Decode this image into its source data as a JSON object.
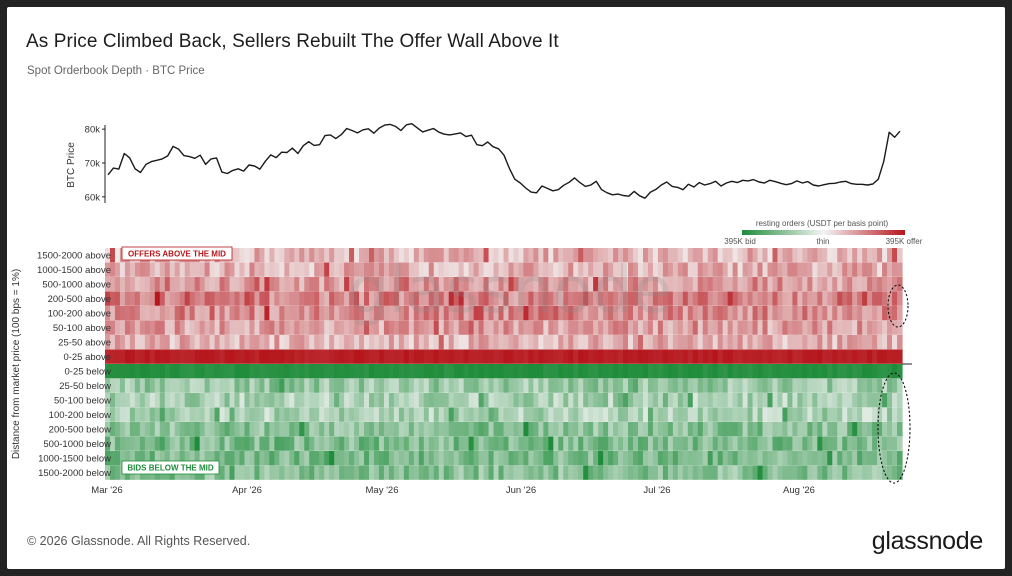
{
  "header": {
    "title": "As Price Climbed Back, Sellers Rebuilt The Offer Wall Above It",
    "subtitle": "Spot Orderbook Depth · BTC Price"
  },
  "footer": {
    "copyright": "© 2026 Glassnode. All Rights Reserved.",
    "brand": "glassnode",
    "watermark": "glassnode"
  },
  "colors": {
    "line": "#1a1a1a",
    "bid": "#1e8c3a",
    "thin": "#f4f4f4",
    "offer": "#b5161c"
  },
  "chart_data": [
    {
      "type": "line",
      "ylabel": "BTC Price",
      "y_ticks": [
        "60k",
        "70k",
        "80k"
      ],
      "ylim": [
        57,
        83
      ],
      "series": [
        {
          "values": [
            66.5,
            68.5,
            68.2,
            72.8,
            71.5,
            68.3,
            67.2,
            69.6,
            70.4,
            70.8,
            71.2,
            72.1,
            74.9,
            74.1,
            72.2,
            71.9,
            71.4,
            72.3,
            69.6,
            71.2,
            71.5,
            67.3,
            66.9,
            67.8,
            68.3,
            67.6,
            69.4,
            69.1,
            68.2,
            70.5,
            72.4,
            71.6,
            73.2,
            73.1,
            74.4,
            72.8,
            75.1,
            76.3,
            75.2,
            75.4,
            78.1,
            78.3,
            77.2,
            78.4,
            80.2,
            79.6,
            78.9,
            79.8,
            80.1,
            78.8,
            80.3,
            81.2,
            81.4,
            80.8,
            79.6,
            81.3,
            81.6,
            80.4,
            79.2,
            79.7,
            80.2,
            79.1,
            78.5,
            78.3,
            78.6,
            78.9,
            77.8,
            78.2,
            75.4,
            75.1,
            76.2,
            74.8,
            74.2,
            72.3,
            68.4,
            65.2,
            64.1,
            62.6,
            61.4,
            61.2,
            63.2,
            62.5,
            61.8,
            62.1,
            63.4,
            64.3,
            65.6,
            64.2,
            63.1,
            63.5,
            64.6,
            62.1,
            61.2,
            60.6,
            60.8,
            60.4,
            60.2,
            61.6,
            60.3,
            59.6,
            61.4,
            62.2,
            63.5,
            64.4,
            63.1,
            62.8,
            62.1,
            63.7,
            62.9,
            64.2,
            63.5,
            63.9,
            64.6,
            63.2,
            64.1,
            64.6,
            64.2,
            64.9,
            64.7,
            65.1,
            64.4,
            64.1,
            64.9,
            64.5,
            64.0,
            63.6,
            63.9,
            64.7,
            64.1,
            64.5,
            63.5,
            63.2,
            63.6,
            63.9,
            64.0,
            64.4,
            64.6,
            63.9,
            63.7,
            63.7,
            63.5,
            63.8,
            65.2,
            70.4,
            79.1,
            77.6,
            79.4
          ]
        }
      ]
    },
    {
      "type": "heatmap",
      "ylabel": "Distance from market price (100 bps = 1%)",
      "rows": [
        "1500-2000 above",
        "1000-1500 above",
        "500-1000 above",
        "200-500 above",
        "100-200 above",
        "50-100 above",
        "25-50 above",
        "0-25 above",
        "0-25 below",
        "25-50 below",
        "50-100 below",
        "100-200 below",
        "200-500 below",
        "500-1000 below",
        "1000-1500 below",
        "1500-2000 below"
      ],
      "row_mean_intensity": [
        0.28,
        0.3,
        0.4,
        0.5,
        0.47,
        0.38,
        0.3,
        0.96,
        0.96,
        0.42,
        0.34,
        0.32,
        0.5,
        0.55,
        0.56,
        0.5
      ],
      "x_ticks": [
        "Mar '26",
        "Apr '26",
        "May '26",
        "Jun '26",
        "Jul '26",
        "Aug '26"
      ],
      "annotations": [
        "OFFERS ABOVE THE MID",
        "BIDS BELOW THE MID"
      ],
      "legend": {
        "title": "resting orders (USDT per basis point)",
        "left": "395K bid",
        "middle": "thin",
        "right": "395K offer",
        "range": [
          -395000,
          395000
        ]
      }
    }
  ]
}
